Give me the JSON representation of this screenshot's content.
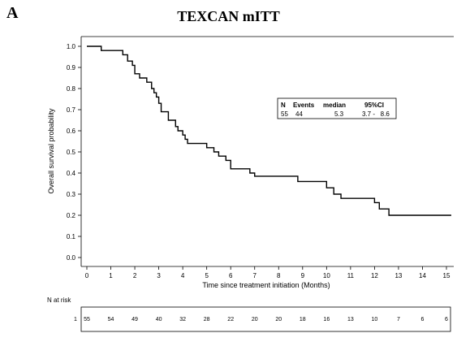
{
  "panel_letter": "A",
  "title": "TEXCAN mITT",
  "chart_data": {
    "type": "line",
    "step": true,
    "title": "TEXCAN mITT",
    "xlabel": "Time since treatment initiation (Months)",
    "ylabel": "Overall survival probability",
    "xlim": [
      0,
      15
    ],
    "ylim": [
      0,
      1
    ],
    "xticks": [
      "0",
      "1",
      "2",
      "3",
      "4",
      "5",
      "6",
      "7",
      "8",
      "9",
      "10",
      "11",
      "12",
      "13",
      "14",
      "15"
    ],
    "yticks": [
      "0.0",
      "0.1",
      "0.2",
      "0.3",
      "0.4",
      "0.5",
      "0.6",
      "0.7",
      "0.8",
      "0.9",
      "1.0"
    ],
    "grid": false,
    "series": [
      {
        "x": [
          0,
          0.6,
          1.5,
          1.7,
          1.9,
          2.0,
          2.2,
          2.5,
          2.7,
          2.8,
          2.9,
          3.0,
          3.1,
          3.4,
          3.7,
          3.8,
          4.0,
          4.1,
          4.2,
          4.5,
          5.0,
          5.3,
          5.5,
          5.8,
          6.0,
          6.8,
          7.0,
          8.6,
          8.8,
          10.0,
          10.3,
          10.6,
          12.0,
          12.2,
          12.6,
          15.2
        ],
        "y": [
          1.0,
          0.98,
          0.96,
          0.93,
          0.91,
          0.87,
          0.85,
          0.83,
          0.8,
          0.78,
          0.76,
          0.73,
          0.69,
          0.65,
          0.62,
          0.6,
          0.58,
          0.56,
          0.54,
          0.54,
          0.52,
          0.5,
          0.48,
          0.46,
          0.42,
          0.4,
          0.385,
          0.385,
          0.36,
          0.33,
          0.3,
          0.28,
          0.26,
          0.23,
          0.2,
          0.2
        ],
        "color": "#000000"
      }
    ],
    "inset_table": {
      "headers": [
        "N",
        "Events",
        "median",
        "95%CI"
      ],
      "row": [
        "55",
        "44",
        "5.3",
        "3.7 -   8.6"
      ]
    },
    "risk_table": {
      "title": "N at risk",
      "group": "1",
      "values": [
        "55",
        "54",
        "49",
        "40",
        "32",
        "28",
        "22",
        "20",
        "20",
        "18",
        "16",
        "13",
        "10",
        "7",
        "6",
        "6"
      ]
    }
  }
}
